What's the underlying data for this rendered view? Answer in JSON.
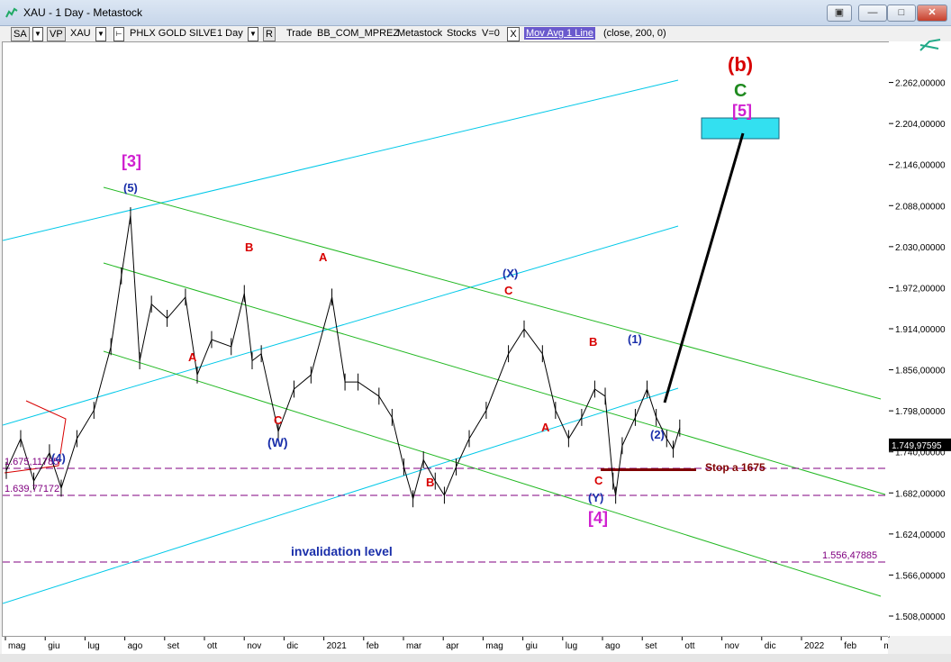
{
  "window": {
    "title": "XAU - 1 Day - Metastock"
  },
  "toolbar": {
    "sa": "SA",
    "vp": "VP",
    "symbol": "XAU",
    "index_name": "PHLX GOLD SILVE",
    "period": "1 Day",
    "r": "R",
    "trade": "Trade",
    "source": "BB_COM_MPREZ",
    "app": "Metastock",
    "stocks": "Stocks",
    "v": "V=0",
    "x": "X",
    "indicator": "Mov Avg 1 Line",
    "params": "(close,  200,  0)"
  },
  "colors": {
    "price": "#000000",
    "cyan_channel": "#00c8e8",
    "green_channel": "#22b822",
    "wave_red": "#d80000",
    "wave_blue": "#1a2faa",
    "wave_magenta": "#d020d0",
    "level_purple": "#800080",
    "stop": "#800000",
    "target_box": "#33e0f0"
  },
  "chart_data": {
    "type": "line",
    "symbol": "XAU",
    "timeframe": "1 Day",
    "ylim": [
      1480,
      2320
    ],
    "y_ticks": [
      "2.262,00000",
      "2.204,00000",
      "2.146,00000",
      "2.088,00000",
      "2.030,00000",
      "1.972,00000",
      "1.914,00000",
      "1.856,00000",
      "1.798,00000",
      "1.740,00000",
      "1.682,00000",
      "1.624,00000",
      "1.566,00000",
      "1.508,00000"
    ],
    "last_price": "1.749,97595",
    "x_ticks": [
      "mag",
      "giu",
      "lug",
      "ago",
      "set",
      "ott",
      "nov",
      "dic",
      "2021",
      "feb",
      "mar",
      "apr",
      "mag",
      "giu",
      "lug",
      "ago",
      "set",
      "ott",
      "nov",
      "dic",
      "2022",
      "feb",
      "mar"
    ],
    "price_points": [
      {
        "x": "2020-05-01",
        "y": 1715
      },
      {
        "x": "2020-05-12",
        "y": 1760
      },
      {
        "x": "2020-05-22",
        "y": 1700
      },
      {
        "x": "2020-06-03",
        "y": 1740
      },
      {
        "x": "2020-06-12",
        "y": 1690
      },
      {
        "x": "2020-06-24",
        "y": 1760
      },
      {
        "x": "2020-07-07",
        "y": 1800
      },
      {
        "x": "2020-07-20",
        "y": 1890
      },
      {
        "x": "2020-07-28",
        "y": 1990
      },
      {
        "x": "2020-08-04",
        "y": 2075
      },
      {
        "x": "2020-08-11",
        "y": 1870
      },
      {
        "x": "2020-08-20",
        "y": 1950
      },
      {
        "x": "2020-09-01",
        "y": 1930
      },
      {
        "x": "2020-09-15",
        "y": 1960
      },
      {
        "x": "2020-09-24",
        "y": 1850
      },
      {
        "x": "2020-10-05",
        "y": 1900
      },
      {
        "x": "2020-10-20",
        "y": 1890
      },
      {
        "x": "2020-10-30",
        "y": 1965
      },
      {
        "x": "2020-11-05",
        "y": 1870
      },
      {
        "x": "2020-11-12",
        "y": 1880
      },
      {
        "x": "2020-11-25",
        "y": 1770
      },
      {
        "x": "2020-12-07",
        "y": 1830
      },
      {
        "x": "2020-12-20",
        "y": 1850
      },
      {
        "x": "2021-01-05",
        "y": 1960
      },
      {
        "x": "2021-01-15",
        "y": 1840
      },
      {
        "x": "2021-01-25",
        "y": 1840
      },
      {
        "x": "2021-02-10",
        "y": 1820
      },
      {
        "x": "2021-02-20",
        "y": 1790
      },
      {
        "x": "2021-03-01",
        "y": 1720
      },
      {
        "x": "2021-03-08",
        "y": 1675
      },
      {
        "x": "2021-03-16",
        "y": 1730
      },
      {
        "x": "2021-03-25",
        "y": 1700
      },
      {
        "x": "2021-04-01",
        "y": 1680
      },
      {
        "x": "2021-04-10",
        "y": 1720
      },
      {
        "x": "2021-04-20",
        "y": 1760
      },
      {
        "x": "2021-05-03",
        "y": 1800
      },
      {
        "x": "2021-05-20",
        "y": 1880
      },
      {
        "x": "2021-06-01",
        "y": 1915
      },
      {
        "x": "2021-06-15",
        "y": 1880
      },
      {
        "x": "2021-06-25",
        "y": 1800
      },
      {
        "x": "2021-07-05",
        "y": 1760
      },
      {
        "x": "2021-07-15",
        "y": 1790
      },
      {
        "x": "2021-07-25",
        "y": 1830
      },
      {
        "x": "2021-08-02",
        "y": 1820
      },
      {
        "x": "2021-08-08",
        "y": 1700
      },
      {
        "x": "2021-08-10",
        "y": 1680
      },
      {
        "x": "2021-08-15",
        "y": 1750
      },
      {
        "x": "2021-08-25",
        "y": 1790
      },
      {
        "x": "2021-09-03",
        "y": 1830
      },
      {
        "x": "2021-09-10",
        "y": 1790
      },
      {
        "x": "2021-09-18",
        "y": 1760
      },
      {
        "x": "2021-09-23",
        "y": 1745
      },
      {
        "x": "2021-09-28",
        "y": 1775
      }
    ],
    "wave_labels": [
      {
        "text": "(b)",
        "color": "red"
      },
      {
        "text": "C",
        "color": "green"
      },
      {
        "text": "[5]",
        "color": "magenta"
      },
      {
        "text": "[3]",
        "color": "magenta"
      },
      {
        "text": "(5)",
        "color": "blue"
      },
      {
        "text": "B",
        "color": "red"
      },
      {
        "text": "A",
        "color": "red"
      },
      {
        "text": "A",
        "color": "red"
      },
      {
        "text": "C",
        "color": "red"
      },
      {
        "text": "(W)",
        "color": "blue"
      },
      {
        "text": "(4)",
        "color": "blue"
      },
      {
        "text": "B",
        "color": "red"
      },
      {
        "text": "(X)",
        "color": "blue"
      },
      {
        "text": "C",
        "color": "red"
      },
      {
        "text": "B",
        "color": "red"
      },
      {
        "text": "(1)",
        "color": "blue"
      },
      {
        "text": "A",
        "color": "red"
      },
      {
        "text": "(2)",
        "color": "blue"
      },
      {
        "text": "C",
        "color": "red"
      },
      {
        "text": "(Y)",
        "color": "blue"
      },
      {
        "text": "[4]",
        "color": "magenta"
      }
    ],
    "level_labels": {
      "level_1675": "1.675,11785",
      "level_1639": "1.639,77172",
      "level_1556": "1.556,47885",
      "stop": "Stop a 1675",
      "invalidation": "invalidation level"
    }
  }
}
